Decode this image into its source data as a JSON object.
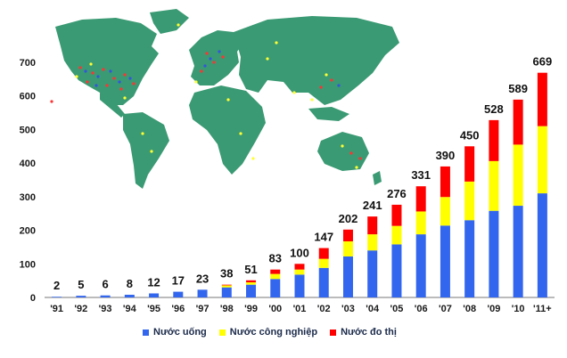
{
  "chart_data": {
    "type": "bar",
    "stacked": true,
    "title": "",
    "xlabel": "",
    "ylabel": "",
    "ylim": [
      0,
      700
    ],
    "yticks": [
      0,
      100,
      200,
      300,
      400,
      500,
      600,
      700
    ],
    "grid": false,
    "legend_position": "bottom",
    "categories": [
      "'91",
      "'92",
      "'93",
      "'94",
      "'95",
      "'96",
      "'97",
      "'98",
      "'99",
      "'00",
      "'01",
      "'02",
      "'03",
      "'04",
      "'05",
      "'06",
      "'07",
      "'08",
      "'09",
      "'10",
      "'11+"
    ],
    "totals": [
      2,
      5,
      6,
      8,
      12,
      17,
      23,
      38,
      51,
      83,
      100,
      147,
      202,
      241,
      276,
      331,
      390,
      450,
      528,
      589,
      669
    ],
    "series": [
      {
        "name": "Nước uống",
        "color": "#3366ee",
        "values": [
          2,
          5,
          6,
          8,
          12,
          17,
          23,
          30,
          38,
          55,
          68,
          88,
          122,
          140,
          158,
          188,
          214,
          230,
          258,
          273,
          310
        ]
      },
      {
        "name": "Nước công nghiệp",
        "color": "#ffff00",
        "values": [
          0,
          0,
          0,
          0,
          0,
          0,
          0,
          6,
          7,
          15,
          15,
          27,
          45,
          48,
          55,
          68,
          85,
          115,
          148,
          182,
          200
        ]
      },
      {
        "name": "Nước đo thị",
        "color": "#ff0000",
        "values": [
          0,
          0,
          0,
          0,
          0,
          0,
          0,
          2,
          6,
          13,
          17,
          32,
          35,
          53,
          63,
          75,
          91,
          105,
          122,
          134,
          159
        ]
      }
    ]
  }
}
